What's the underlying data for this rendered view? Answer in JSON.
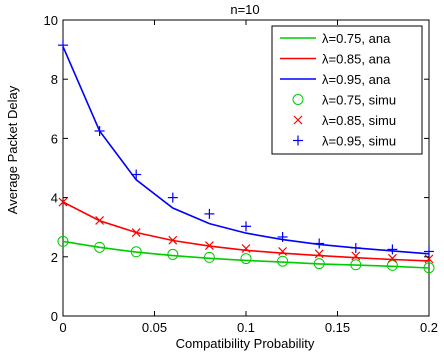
{
  "chart_data": {
    "type": "line",
    "title": "n=10",
    "xlabel": "Compatibility Probability",
    "ylabel": "Average Packet Delay",
    "xlim": [
      0,
      0.2
    ],
    "ylim": [
      0,
      10
    ],
    "xticks": [
      0,
      0.05,
      0.1,
      0.15,
      0.2
    ],
    "xtick_labels": [
      "0",
      "0.05",
      "0.1",
      "0.15",
      "0.2"
    ],
    "yticks": [
      0,
      2,
      4,
      6,
      8,
      10
    ],
    "ytick_labels": [
      "0",
      "2",
      "4",
      "6",
      "8",
      "10"
    ],
    "grid": false,
    "legend_position": "top-right",
    "series": [
      {
        "name": "λ=0.75, ana",
        "kind": "line",
        "color": "#00cc00",
        "x": [
          0,
          0.02,
          0.04,
          0.06,
          0.08,
          0.1,
          0.12,
          0.14,
          0.16,
          0.18,
          0.2
        ],
        "y": [
          2.52,
          2.32,
          2.16,
          2.04,
          1.95,
          1.88,
          1.82,
          1.76,
          1.72,
          1.68,
          1.62
        ]
      },
      {
        "name": "λ=0.85, ana",
        "kind": "line",
        "color": "#ff0000",
        "x": [
          0,
          0.02,
          0.04,
          0.06,
          0.08,
          0.1,
          0.12,
          0.14,
          0.16,
          0.18,
          0.2
        ],
        "y": [
          3.85,
          3.22,
          2.82,
          2.55,
          2.36,
          2.22,
          2.12,
          2.04,
          1.97,
          1.91,
          1.86
        ]
      },
      {
        "name": "λ=0.95, ana",
        "kind": "line",
        "color": "#0000ff",
        "x": [
          0,
          0.02,
          0.04,
          0.06,
          0.08,
          0.1,
          0.12,
          0.14,
          0.16,
          0.18,
          0.2
        ],
        "y": [
          9.1,
          6.25,
          4.6,
          3.65,
          3.12,
          2.8,
          2.58,
          2.42,
          2.3,
          2.2,
          2.1
        ]
      },
      {
        "name": "λ=0.75, simu",
        "kind": "marker",
        "marker": "circle",
        "color": "#00cc00",
        "x": [
          0,
          0.02,
          0.04,
          0.06,
          0.08,
          0.1,
          0.12,
          0.14,
          0.16,
          0.18,
          0.2
        ],
        "y": [
          2.52,
          2.32,
          2.17,
          2.08,
          1.98,
          1.94,
          1.85,
          1.77,
          1.73,
          1.71,
          1.63
        ]
      },
      {
        "name": "λ=0.85, simu",
        "kind": "marker",
        "marker": "x",
        "color": "#ff0000",
        "x": [
          0,
          0.02,
          0.04,
          0.06,
          0.08,
          0.1,
          0.12,
          0.14,
          0.16,
          0.18,
          0.2
        ],
        "y": [
          3.85,
          3.23,
          2.82,
          2.56,
          2.38,
          2.28,
          2.18,
          2.1,
          2.03,
          1.95,
          1.93
        ]
      },
      {
        "name": "λ=0.95, simu",
        "kind": "marker",
        "marker": "plus",
        "color": "#0000ff",
        "x": [
          0,
          0.02,
          0.04,
          0.06,
          0.08,
          0.1,
          0.12,
          0.14,
          0.16,
          0.18,
          0.2
        ],
        "y": [
          9.15,
          6.25,
          4.78,
          4.0,
          3.45,
          3.03,
          2.67,
          2.45,
          2.3,
          2.25,
          2.18
        ]
      }
    ]
  }
}
